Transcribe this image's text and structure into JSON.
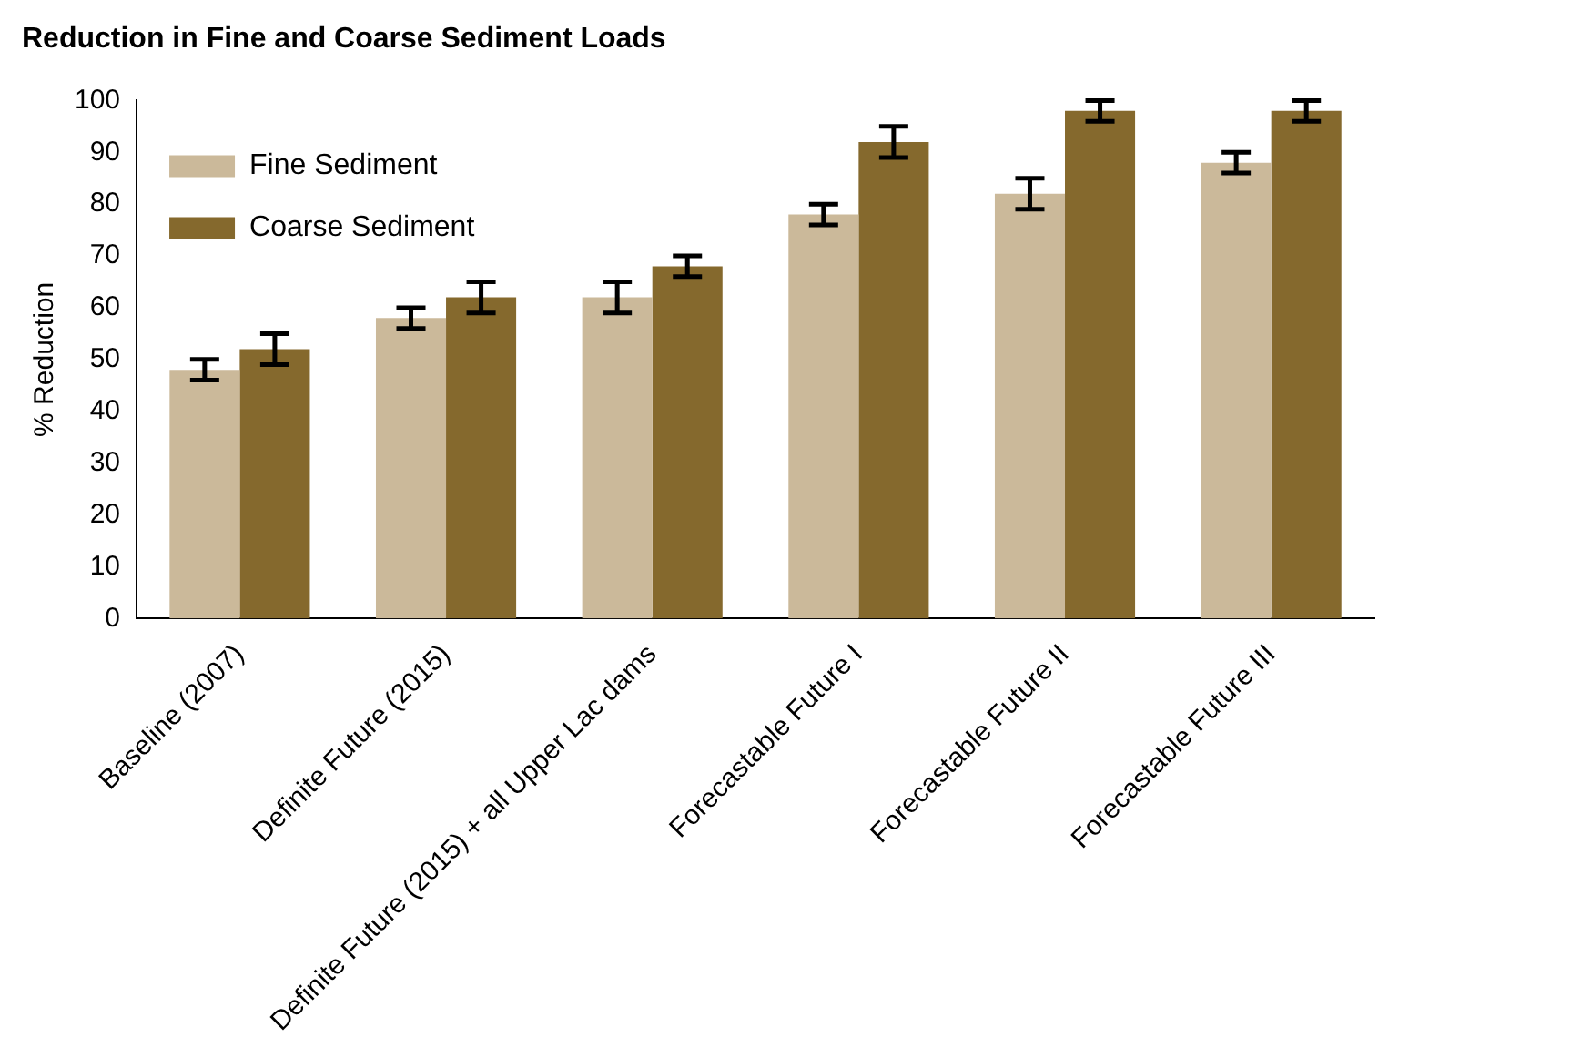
{
  "chart_data": {
    "type": "bar",
    "title": "Reduction in Fine and Coarse Sediment Loads",
    "ylabel": "% Reduction",
    "categories": [
      "Baseline (2007)",
      "Definite Future (2015)",
      "Definite Future (2015) + all Upper Lac dams",
      "Forecastable Future I",
      "Forecastable Future II",
      "Forecastable Future III"
    ],
    "series": [
      {
        "name": "Fine Sediment",
        "color": "#cbb99a",
        "values": [
          48,
          58,
          62,
          78,
          82,
          88
        ],
        "errors": [
          2,
          2,
          3,
          2,
          3,
          2
        ]
      },
      {
        "name": "Coarse Sediment",
        "color": "#85692d",
        "values": [
          52,
          62,
          68,
          92,
          98,
          98
        ],
        "errors": [
          3,
          3,
          2,
          3,
          2,
          2
        ]
      }
    ],
    "ylim": [
      0,
      100
    ],
    "yticks": [
      0,
      10,
      20,
      30,
      40,
      50,
      60,
      70,
      80,
      90,
      100
    ],
    "grid": false,
    "legend": "top left"
  }
}
